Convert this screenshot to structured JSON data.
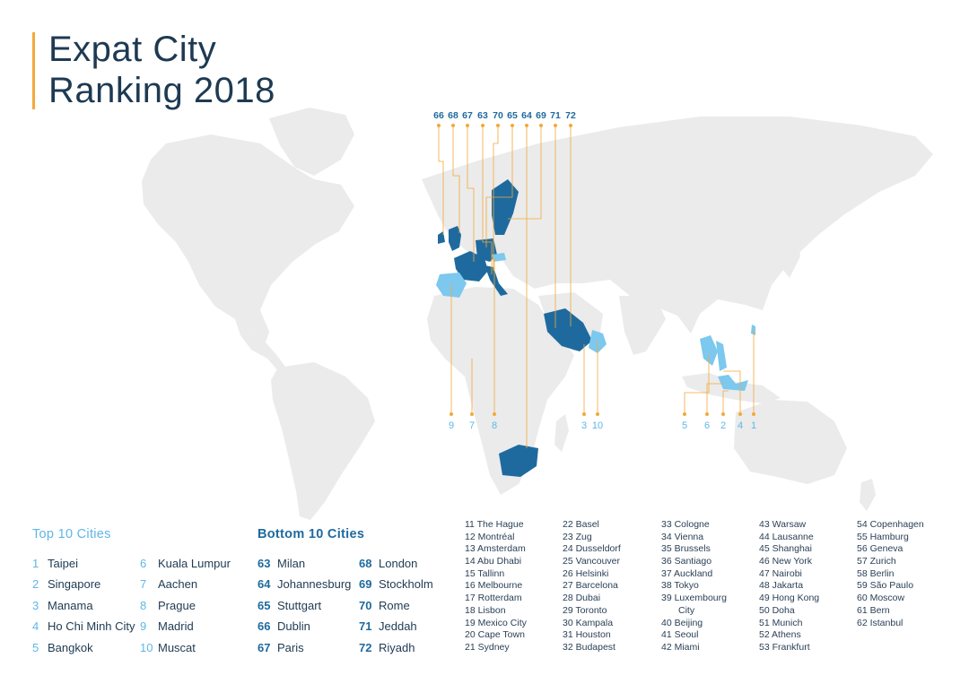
{
  "title": {
    "line1": "Expat City",
    "line2": "Ranking 2018"
  },
  "colors": {
    "accent": "#f2a93b",
    "bottom": "#1e6a9e",
    "top": "#7cc8ee",
    "land": "#ebebeb"
  },
  "map_labels": {
    "top": [
      "66",
      "68",
      "67",
      "63",
      "70",
      "65",
      "64",
      "69",
      "71",
      "72"
    ],
    "bottom": [
      "9",
      "7",
      "8",
      "3",
      "10",
      "5",
      "6",
      "2",
      "4",
      "1"
    ]
  },
  "top10": {
    "heading": "Top 10 Cities",
    "items": [
      {
        "rank": "1",
        "city": "Taipei"
      },
      {
        "rank": "2",
        "city": "Singapore"
      },
      {
        "rank": "3",
        "city": "Manama"
      },
      {
        "rank": "4",
        "city": "Ho Chi Minh City"
      },
      {
        "rank": "5",
        "city": "Bangkok"
      },
      {
        "rank": "6",
        "city": "Kuala Lumpur"
      },
      {
        "rank": "7",
        "city": "Aachen"
      },
      {
        "rank": "8",
        "city": "Prague"
      },
      {
        "rank": "9",
        "city": "Madrid"
      },
      {
        "rank": "10",
        "city": "Muscat"
      }
    ]
  },
  "bottom10": {
    "heading": "Bottom 10 Cities",
    "items": [
      {
        "rank": "63",
        "city": "Milan"
      },
      {
        "rank": "64",
        "city": "Johannesburg"
      },
      {
        "rank": "65",
        "city": "Stuttgart"
      },
      {
        "rank": "66",
        "city": "Dublin"
      },
      {
        "rank": "67",
        "city": "Paris"
      },
      {
        "rank": "68",
        "city": "London"
      },
      {
        "rank": "69",
        "city": "Stockholm"
      },
      {
        "rank": "70",
        "city": "Rome"
      },
      {
        "rank": "71",
        "city": "Jeddah"
      },
      {
        "rank": "72",
        "city": "Riyadh"
      }
    ]
  },
  "middle": [
    [
      "11 The Hague",
      "12 Montréal",
      "13 Amsterdam",
      "14 Abu Dhabi",
      "15 Tallinn",
      "16 Melbourne",
      "17 Rotterdam",
      "18 Lisbon",
      "19 Mexico City",
      "20 Cape Town",
      "21 Sydney"
    ],
    [
      "22 Basel",
      "23 Zug",
      "24 Dusseldorf",
      "25 Vancouver",
      "26 Helsinki",
      "27 Barcelona",
      "28 Dubai",
      "29 Toronto",
      "30 Kampala",
      "31 Houston",
      "32 Budapest"
    ],
    [
      "33 Cologne",
      "34 Vienna",
      "35 Brussels",
      "36 Santiago",
      "37 Auckland",
      "38 Tokyo",
      "39 Luxembourg",
      "City",
      "40 Beijing",
      "41 Seoul",
      "42 Miami"
    ],
    [
      "43 Warsaw",
      "44 Lausanne",
      "45 Shanghai",
      "46 New York",
      "47 Nairobi",
      "48 Jakarta",
      "49 Hong Kong",
      "50 Doha",
      "51 Munich",
      "52 Athens",
      "53 Frankfurt"
    ],
    [
      "54 Copenhagen",
      "55 Hamburg",
      "56 Geneva",
      "57 Zurich",
      "58 Berlin",
      "59 São Paulo",
      "60 Moscow",
      "61 Bern",
      "62 Istanbul"
    ]
  ]
}
